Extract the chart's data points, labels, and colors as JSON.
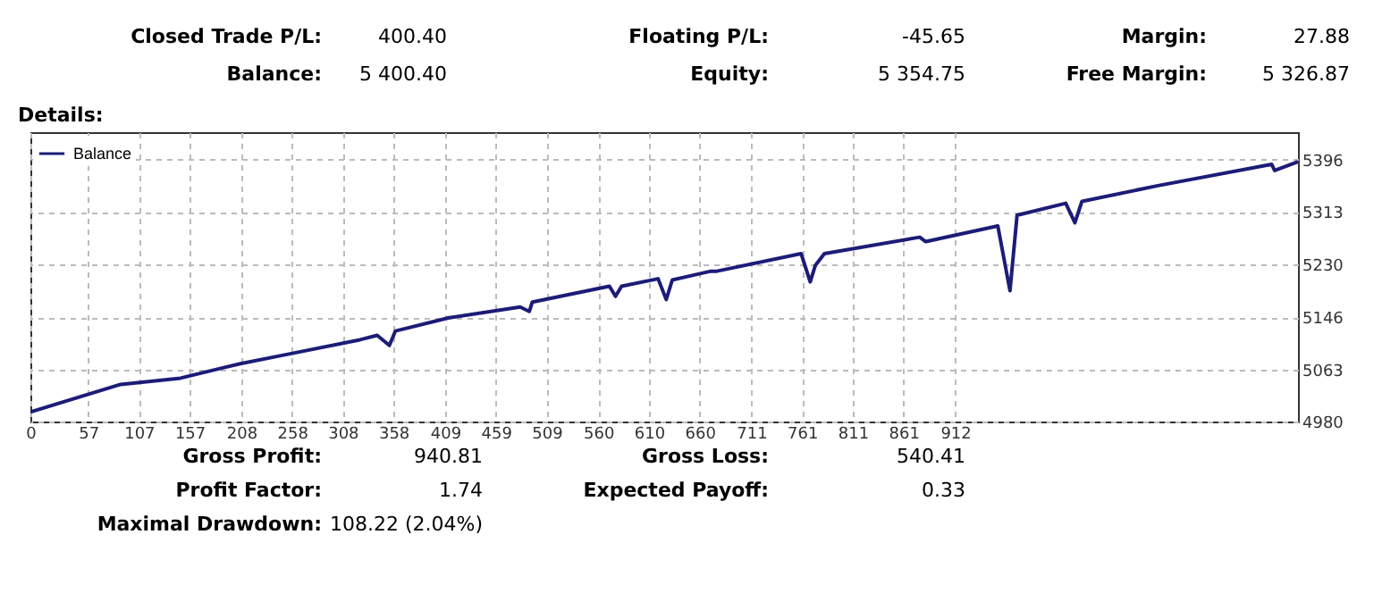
{
  "chart_data": {
    "type": "line",
    "title": "Details:",
    "annotations": [
      "Closed Trade P/L:",
      "400.40",
      "Floating P/L:",
      "-45.65",
      "Margin:",
      "27.88",
      "Balance:",
      "5 400.40",
      "Equity:",
      "5 354.75",
      "Free Margin:",
      "5 326.87",
      "Gross Profit:",
      "940.81",
      "Gross Loss:",
      "540.41",
      "Profit Factor:",
      "1.74",
      "Expected Payoff:",
      "0.33",
      "Maximal Drawdown:",
      "108.22 (2.04%)"
    ],
    "x": [
      0,
      89,
      148,
      207,
      254,
      325,
      342,
      354,
      360,
      413,
      483,
      492,
      495,
      571,
      577,
      583,
      619,
      627,
      633,
      671,
      677,
      760,
      769,
      774,
      783,
      877,
      883,
      954,
      966,
      973,
      1021,
      1030,
      1037,
      1112,
      1224,
      1227,
      1250
    ],
    "series": [
      {
        "name": "Balance",
        "color": "#1c1c78",
        "values": [
          4995,
          5039,
          5049,
          5072,
          5087,
          5110,
          5117,
          5101,
          5124,
          5145,
          5162,
          5155,
          5170,
          5195,
          5179,
          5195,
          5207,
          5174,
          5205,
          5219,
          5219,
          5247,
          5202,
          5228,
          5247,
          5273,
          5266,
          5291,
          5188,
          5308,
          5327,
          5296,
          5330,
          5355,
          5389,
          5379,
          5393
        ]
      }
    ],
    "xlim": [
      0,
      1250
    ],
    "xticks": [
      0,
      57,
      107,
      157,
      208,
      258,
      308,
      358,
      409,
      459,
      509,
      560,
      610,
      660,
      711,
      761,
      811,
      861,
      912
    ],
    "ylim": [
      4980,
      5440
    ],
    "yticks": [
      4980,
      5063,
      5146,
      5230,
      5313,
      5396
    ],
    "grid": true,
    "legend": "top left",
    "marker": "none",
    "line_style": "solid"
  }
}
